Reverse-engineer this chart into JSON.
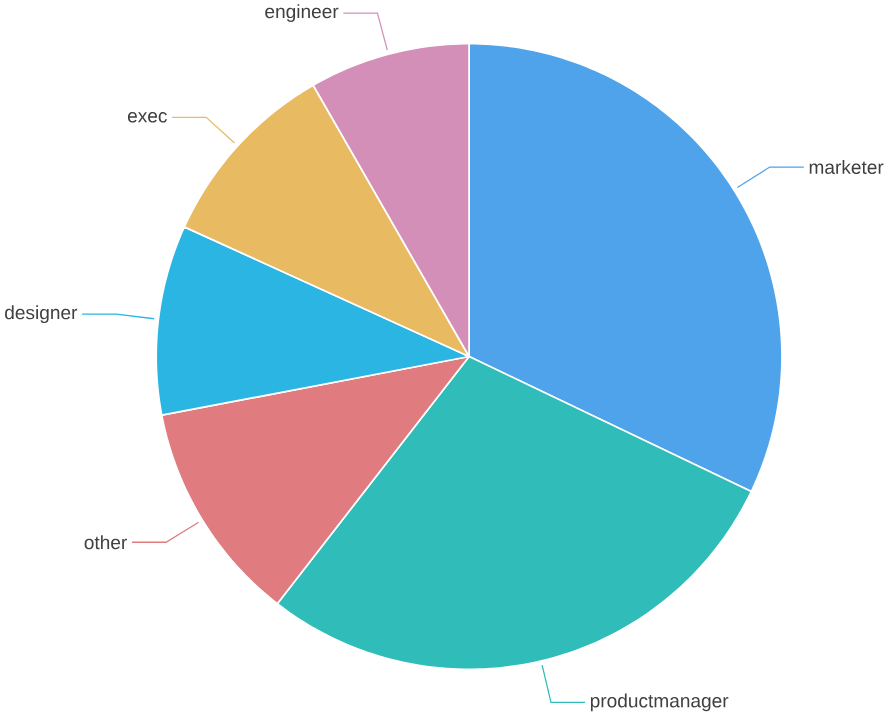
{
  "chart_data": {
    "type": "pie",
    "categories": [
      "marketer",
      "productmanager",
      "other",
      "designer",
      "exec",
      "engineer"
    ],
    "values": [
      32.1,
      28.4,
      11.5,
      9.8,
      9.9,
      8.3
    ],
    "colors": [
      "#4fa3ea",
      "#30bcb9",
      "#e07b7f",
      "#2bb5e3",
      "#e8bb63",
      "#d48fb9"
    ]
  }
}
